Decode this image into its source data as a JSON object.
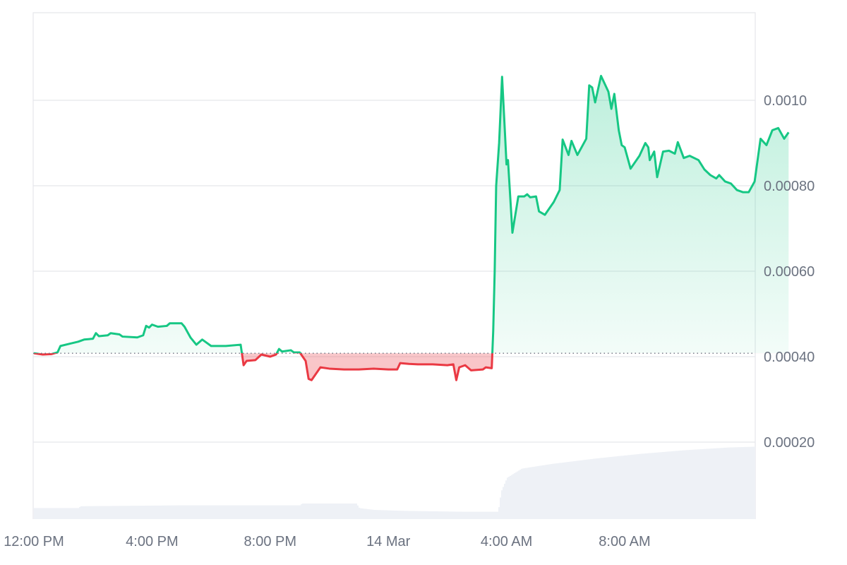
{
  "chart_data": {
    "type": "area",
    "baseline": 0.000408,
    "colors": {
      "up_line": "#16c784",
      "down_line": "#ea3943",
      "up_fill": "#16c784",
      "down_fill": "#ea3943",
      "volume": "#eef1f6",
      "grid": "#e5e7eb",
      "text": "#6b7280"
    },
    "x_ticks": [
      {
        "label": "12:00 PM",
        "hour": 0
      },
      {
        "label": "4:00 PM",
        "hour": 4
      },
      {
        "label": "8:00 PM",
        "hour": 8
      },
      {
        "label": "14 Mar",
        "hour": 12
      },
      {
        "label": "4:00 AM",
        "hour": 16
      },
      {
        "label": "8:00 AM",
        "hour": 20
      }
    ],
    "y_ticks": [
      {
        "label": "0.00020",
        "value": 0.0002
      },
      {
        "label": "0.00040",
        "value": 0.0004
      },
      {
        "label": "0.00060",
        "value": 0.0006
      },
      {
        "label": "0.00080",
        "value": 0.0008
      },
      {
        "label": "0.0010",
        "value": 0.001
      }
    ],
    "x_range_hours": [
      0,
      24.2
    ],
    "y_range": [
      0.0002,
      0.00115
    ],
    "price": [
      [
        0.0,
        0.000408
      ],
      [
        0.3,
        0.000405
      ],
      [
        0.6,
        0.000406
      ],
      [
        0.8,
        0.00041
      ],
      [
        0.9,
        0.000425
      ],
      [
        1.2,
        0.00043
      ],
      [
        1.5,
        0.000435
      ],
      [
        1.7,
        0.00044
      ],
      [
        2.0,
        0.000442
      ],
      [
        2.1,
        0.000455
      ],
      [
        2.2,
        0.000448
      ],
      [
        2.5,
        0.00045
      ],
      [
        2.6,
        0.000455
      ],
      [
        2.9,
        0.000452
      ],
      [
        3.0,
        0.000447
      ],
      [
        3.5,
        0.000445
      ],
      [
        3.7,
        0.00045
      ],
      [
        3.8,
        0.000472
      ],
      [
        3.9,
        0.000468
      ],
      [
        4.0,
        0.000475
      ],
      [
        4.2,
        0.00047
      ],
      [
        4.5,
        0.000472
      ],
      [
        4.6,
        0.000478
      ],
      [
        5.0,
        0.000478
      ],
      [
        5.1,
        0.00047
      ],
      [
        5.3,
        0.000445
      ],
      [
        5.5,
        0.000428
      ],
      [
        5.7,
        0.00044
      ],
      [
        5.8,
        0.000435
      ],
      [
        6.0,
        0.000425
      ],
      [
        6.5,
        0.000425
      ],
      [
        7.0,
        0.000428
      ],
      [
        7.1,
        0.00038
      ],
      [
        7.2,
        0.00039
      ],
      [
        7.5,
        0.000392
      ],
      [
        7.7,
        0.000405
      ],
      [
        8.0,
        0.0004
      ],
      [
        8.2,
        0.000405
      ],
      [
        8.3,
        0.000418
      ],
      [
        8.4,
        0.000412
      ],
      [
        8.7,
        0.000415
      ],
      [
        8.8,
        0.00041
      ],
      [
        9.0,
        0.00041
      ],
      [
        9.2,
        0.00039
      ],
      [
        9.3,
        0.000348
      ],
      [
        9.4,
        0.000345
      ],
      [
        9.7,
        0.000375
      ],
      [
        10.0,
        0.000372
      ],
      [
        10.5,
        0.00037
      ],
      [
        11.0,
        0.00037
      ],
      [
        11.5,
        0.000372
      ],
      [
        12.0,
        0.00037
      ],
      [
        12.3,
        0.00037
      ],
      [
        12.4,
        0.000385
      ],
      [
        12.7,
        0.000383
      ],
      [
        13.0,
        0.000382
      ],
      [
        13.5,
        0.000382
      ],
      [
        14.0,
        0.00038
      ],
      [
        14.2,
        0.000382
      ],
      [
        14.3,
        0.000345
      ],
      [
        14.4,
        0.000375
      ],
      [
        14.6,
        0.00038
      ],
      [
        14.8,
        0.000368
      ],
      [
        15.2,
        0.00037
      ],
      [
        15.3,
        0.000375
      ],
      [
        15.5,
        0.000373
      ],
      [
        15.55,
        0.00046
      ],
      [
        15.6,
        0.0006
      ],
      [
        15.65,
        0.0008
      ],
      [
        15.75,
        0.0009
      ],
      [
        15.85,
        0.001055
      ],
      [
        15.95,
        0.00092
      ],
      [
        16.0,
        0.00085
      ],
      [
        16.05,
        0.00086
      ],
      [
        16.2,
        0.00069
      ],
      [
        16.4,
        0.000775
      ],
      [
        16.6,
        0.000775
      ],
      [
        16.7,
        0.00078
      ],
      [
        16.8,
        0.000773
      ],
      [
        17.0,
        0.000775
      ],
      [
        17.1,
        0.00074
      ],
      [
        17.3,
        0.000732
      ],
      [
        17.6,
        0.000762
      ],
      [
        17.8,
        0.00079
      ],
      [
        17.9,
        0.000908
      ],
      [
        18.1,
        0.000872
      ],
      [
        18.2,
        0.000905
      ],
      [
        18.4,
        0.000872
      ],
      [
        18.7,
        0.00091
      ],
      [
        18.8,
        0.001035
      ],
      [
        18.9,
        0.00103
      ],
      [
        19.0,
        0.000995
      ],
      [
        19.2,
        0.001057
      ],
      [
        19.45,
        0.00102
      ],
      [
        19.55,
        0.00098
      ],
      [
        19.65,
        0.001015
      ],
      [
        19.8,
        0.00093
      ],
      [
        19.9,
        0.000895
      ],
      [
        20.0,
        0.00089
      ],
      [
        20.2,
        0.00084
      ],
      [
        20.5,
        0.00087
      ],
      [
        20.7,
        0.0009
      ],
      [
        20.8,
        0.00089
      ],
      [
        20.85,
        0.00086
      ],
      [
        21.0,
        0.00088
      ],
      [
        21.1,
        0.00082
      ],
      [
        21.3,
        0.00088
      ],
      [
        21.5,
        0.000882
      ],
      [
        21.7,
        0.000875
      ],
      [
        21.8,
        0.000902
      ],
      [
        22.0,
        0.000865
      ],
      [
        22.2,
        0.00087
      ],
      [
        22.5,
        0.00086
      ],
      [
        22.7,
        0.000838
      ],
      [
        22.9,
        0.000825
      ],
      [
        23.1,
        0.000817
      ],
      [
        23.2,
        0.000825
      ],
      [
        23.4,
        0.00081
      ],
      [
        23.6,
        0.000805
      ],
      [
        23.8,
        0.00079
      ],
      [
        24.0,
        0.000785
      ],
      [
        24.2,
        0.000785
      ],
      [
        24.4,
        0.00081
      ],
      [
        24.6,
        0.00091
      ],
      [
        24.8,
        0.000895
      ],
      [
        25.0,
        0.00093
      ],
      [
        25.2,
        0.000935
      ],
      [
        25.4,
        0.00091
      ],
      [
        25.55,
        0.000925
      ]
    ],
    "volume": [
      [
        0.0,
        0.12
      ],
      [
        1.5,
        0.12
      ],
      [
        1.55,
        0.14
      ],
      [
        5.0,
        0.15
      ],
      [
        9.0,
        0.15
      ],
      [
        9.05,
        0.17
      ],
      [
        10.9,
        0.17
      ],
      [
        11.0,
        0.12
      ],
      [
        11.5,
        0.1
      ],
      [
        12.5,
        0.09
      ],
      [
        14.5,
        0.08
      ],
      [
        15.7,
        0.08
      ],
      [
        15.8,
        0.3
      ],
      [
        16.0,
        0.45
      ],
      [
        16.5,
        0.55
      ],
      [
        17.5,
        0.6
      ],
      [
        19.0,
        0.66
      ],
      [
        20.5,
        0.71
      ],
      [
        22.0,
        0.75
      ],
      [
        23.5,
        0.78
      ],
      [
        25.55,
        0.8
      ]
    ]
  }
}
